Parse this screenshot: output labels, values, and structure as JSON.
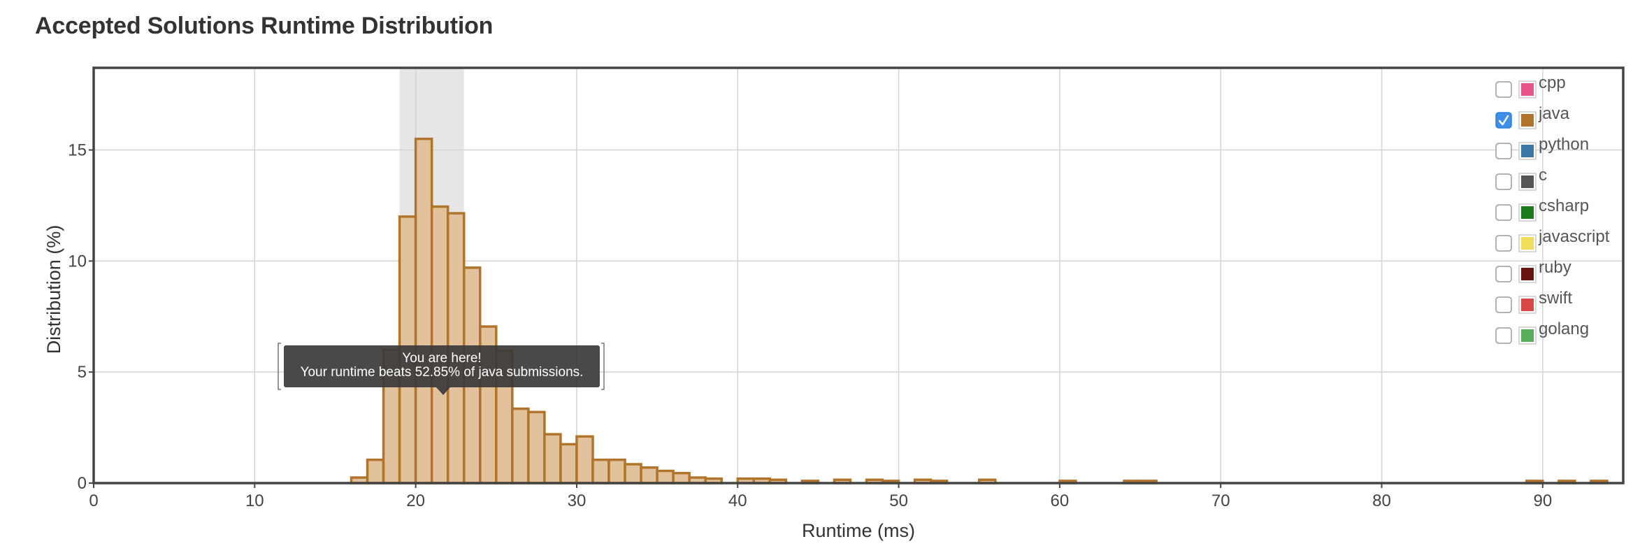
{
  "page": {
    "title": "Accepted Solutions Runtime Distribution"
  },
  "chart_data": {
    "type": "bar",
    "title": "Accepted Solutions Runtime Distribution",
    "xlabel": "Runtime (ms)",
    "ylabel": "Distribution (%)",
    "xlim": [
      0,
      95
    ],
    "ylim": [
      0,
      18.7
    ],
    "x_ticks": [
      0,
      10,
      20,
      30,
      40,
      50,
      60,
      70,
      80,
      90
    ],
    "y_ticks": [
      0,
      5,
      10,
      15
    ],
    "grid": true,
    "bin_width_ms": 1,
    "selected_series": "java",
    "series": [
      {
        "name": "java",
        "color": "#b0752a",
        "fill": "#e2c29c",
        "bins": [
          {
            "x": 16,
            "value": 0.25
          },
          {
            "x": 17,
            "value": 1.05
          },
          {
            "x": 18,
            "value": 6.0
          },
          {
            "x": 19,
            "value": 12.0
          },
          {
            "x": 20,
            "value": 15.5
          },
          {
            "x": 21,
            "value": 12.45
          },
          {
            "x": 22,
            "value": 12.15
          },
          {
            "x": 23,
            "value": 9.7
          },
          {
            "x": 24,
            "value": 7.05
          },
          {
            "x": 25,
            "value": 5.95
          },
          {
            "x": 26,
            "value": 3.35
          },
          {
            "x": 27,
            "value": 3.2
          },
          {
            "x": 28,
            "value": 2.2
          },
          {
            "x": 29,
            "value": 1.75
          },
          {
            "x": 30,
            "value": 2.1
          },
          {
            "x": 31,
            "value": 1.05
          },
          {
            "x": 32,
            "value": 1.05
          },
          {
            "x": 33,
            "value": 0.85
          },
          {
            "x": 34,
            "value": 0.7
          },
          {
            "x": 35,
            "value": 0.55
          },
          {
            "x": 36,
            "value": 0.45
          },
          {
            "x": 37,
            "value": 0.25
          },
          {
            "x": 38,
            "value": 0.2
          },
          {
            "x": 40,
            "value": 0.2
          },
          {
            "x": 41,
            "value": 0.2
          },
          {
            "x": 42,
            "value": 0.15
          },
          {
            "x": 44,
            "value": 0.1
          },
          {
            "x": 46,
            "value": 0.15
          },
          {
            "x": 48,
            "value": 0.15
          },
          {
            "x": 49,
            "value": 0.1
          },
          {
            "x": 51,
            "value": 0.15
          },
          {
            "x": 52,
            "value": 0.1
          },
          {
            "x": 55,
            "value": 0.15
          },
          {
            "x": 60,
            "value": 0.1
          },
          {
            "x": 64,
            "value": 0.1
          },
          {
            "x": 65,
            "value": 0.1
          },
          {
            "x": 89,
            "value": 0.1
          },
          {
            "x": 91,
            "value": 0.1
          },
          {
            "x": 93,
            "value": 0.1
          }
        ]
      }
    ],
    "highlight_range": [
      19,
      23
    ],
    "highlight_color": "#e6e6e6",
    "tooltip": {
      "line1": "You are here!",
      "line2": "Your runtime beats 52.85% of java submissions."
    },
    "legend": {
      "placement": "top-right",
      "items": [
        {
          "label": "cpp",
          "color": "#e8558a",
          "checked": false
        },
        {
          "label": "java",
          "color": "#b0752a",
          "checked": true
        },
        {
          "label": "python",
          "color": "#3a77a6",
          "checked": false
        },
        {
          "label": "c",
          "color": "#555555",
          "checked": false
        },
        {
          "label": "csharp",
          "color": "#1a7c1a",
          "checked": false
        },
        {
          "label": "javascript",
          "color": "#f0dd5a",
          "checked": false
        },
        {
          "label": "ruby",
          "color": "#6b1414",
          "checked": false
        },
        {
          "label": "swift",
          "color": "#d94848",
          "checked": false
        },
        {
          "label": "golang",
          "color": "#58ad5c",
          "checked": false
        }
      ]
    }
  }
}
